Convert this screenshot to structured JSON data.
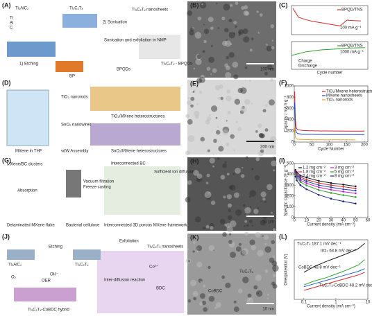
{
  "panel_a": {
    "label": "(A)",
    "texts": [
      "Ti₃AlC₂",
      "Ti",
      "Al",
      "C",
      "1) Etching",
      "Ti₃C₂Tₓ",
      "2) Sonication",
      "Ti₃C₂Tₓ nanosheets",
      "Sonication and exfoliation in NMP",
      "BPQDs",
      "BP",
      "Ti₃C₂Tₓ - BPQDs"
    ]
  },
  "panel_b": {
    "label": "(B)",
    "scale": "100 nm"
  },
  "panel_c": {
    "label": "(C)",
    "texts": [
      "100 mA g⁻¹",
      "1000 mA g⁻¹",
      "Charge",
      "Discharge"
    ],
    "charts": [
      {
        "type": "line",
        "xlim": [
          0,
          55
        ],
        "ylim": [
          0,
          1000
        ],
        "x": [
          1,
          5,
          10,
          15,
          20,
          25,
          30,
          35,
          40,
          45,
          50
        ],
        "series": [
          {
            "name": "BPQD/TNS",
            "color": "#d62728",
            "values": [
              900,
              600,
              520,
              460,
              420,
              380,
              340,
              300,
              500,
              480,
              470
            ]
          }
        ]
      },
      {
        "type": "line",
        "xlim": [
          0,
          2600
        ],
        "ylim": [
          0,
          600
        ],
        "xlabel": "Cycle number",
        "x": [
          0,
          500,
          1000,
          1500,
          2000,
          2500
        ],
        "series": [
          {
            "name": "BPQD/TNS",
            "color": "#2ca02c",
            "values": [
              300,
              380,
              420,
              440,
              460,
              470
            ]
          }
        ]
      }
    ]
  },
  "panel_d": {
    "label": "(D)",
    "texts": [
      "MXene in THF",
      "TiO₂ nanorods",
      "SnO₂ nanowires",
      "vdW Assembly",
      "TiO₂/MXene heterostructures",
      "SnO₂/MXene heterostructures"
    ]
  },
  "panel_e": {
    "label": "(E)",
    "scale": "200 nm"
  },
  "panel_f": {
    "label": "(F)",
    "chart": {
      "type": "line",
      "xlabel": "Cycle Number",
      "ylabel": "Capacity / mA h g⁻¹",
      "xlim": [
        0,
        210
      ],
      "ylim": [
        0,
        1000
      ],
      "xticks": [
        0,
        50,
        100,
        150,
        200
      ],
      "yticks": [
        0,
        200,
        400,
        600,
        800,
        1000
      ],
      "x": [
        1,
        3,
        5,
        10,
        25,
        50,
        75,
        100,
        125,
        150,
        175,
        200
      ],
      "series": [
        {
          "name": "TiO₂/Mxene heterostructures",
          "color": "#d62728",
          "values": [
            900,
            420,
            260,
            220,
            205,
            200,
            198,
            197,
            196,
            195,
            195,
            194
          ]
        },
        {
          "name": "MXene nanosheets",
          "color": "#1f3fbf",
          "values": [
            700,
            300,
            180,
            150,
            140,
            138,
            136,
            135,
            134,
            134,
            133,
            133
          ]
        },
        {
          "name": "TiO₂ nanorods",
          "color": "#f0a020",
          "values": [
            250,
            100,
            60,
            50,
            45,
            42,
            40,
            40,
            39,
            39,
            38,
            null
          ]
        }
      ]
    }
  },
  "panel_g": {
    "label": "(G)",
    "texts": [
      "MXene/BC clusters",
      "Absorption",
      "Vacuum filtration",
      "Freeze-casting",
      "Interconnected BC",
      "Sufficient ion diffusion",
      "Delaminated MXene flake",
      "Bacterial cellulose",
      "Interconnected 3D porous MXene framework"
    ]
  },
  "panel_h": {
    "label": "(H)",
    "scale": "50 μm"
  },
  "panel_i": {
    "label": "(I)",
    "chart": {
      "type": "line",
      "markers": true,
      "xlabel": "Current density (mA cm⁻²)",
      "ylabel": "Specific capacitance (F g⁻¹)",
      "xlim": [
        0,
        60
      ],
      "ylim": [
        0,
        500
      ],
      "xticks": [
        0,
        10,
        20,
        30,
        40,
        50,
        60
      ],
      "yticks": [
        0,
        100,
        200,
        300,
        400,
        500
      ],
      "x": [
        1,
        2,
        5,
        10,
        20,
        30,
        40,
        50
      ],
      "series": [
        {
          "name": "1.2 mg cm⁻²",
          "color": "#111111",
          "values": [
            440,
            420,
            390,
            370,
            340,
            320,
            305,
            290
          ]
        },
        {
          "name": "1.8 mg cm⁻²",
          "color": "#d62728",
          "values": [
            430,
            405,
            375,
            350,
            320,
            300,
            285,
            270
          ]
        },
        {
          "name": "2.4 mg cm⁻²",
          "color": "#1f3fbf",
          "values": [
            420,
            395,
            360,
            335,
            300,
            280,
            262,
            250
          ]
        },
        {
          "name": "3 mg cm⁻²",
          "color": "#c020c0",
          "values": [
            410,
            385,
            345,
            318,
            280,
            258,
            240,
            225
          ]
        },
        {
          "name": "5 mg cm⁻²",
          "color": "#2ca02c",
          "values": [
            400,
            370,
            330,
            298,
            255,
            228,
            208,
            190
          ]
        },
        {
          "name": "8 mg cm⁻²",
          "color": "#1a237e",
          "values": [
            380,
            345,
            300,
            262,
            210,
            175,
            150,
            130
          ]
        }
      ]
    }
  },
  "panel_j": {
    "label": "(J)",
    "texts": [
      "Ti₃AlC₂",
      "Etching",
      "Ti₃C₂Tₓ",
      "Exfoliation",
      "Ti₃C₂Tₓ nanosheets",
      "Co²⁺",
      "Inter-diffusion reaction",
      "BDC",
      "OER",
      "O₂",
      "OH⁻",
      "Ti₃C₂Tₓ-CoBDC hybrid"
    ]
  },
  "panel_k": {
    "label": "(K)",
    "texts": [
      "Ti₃C₂Tₓ",
      "CoBDC"
    ],
    "scale": "10 nm"
  },
  "panel_l": {
    "label": "(L)",
    "chart": {
      "type": "line",
      "xlog": true,
      "xlabel": "Current density (mA cm⁻²)",
      "ylabel": "Overpotential (V)",
      "xlim": [
        0.05,
        10
      ],
      "ylim": [
        0.25,
        0.58
      ],
      "xticks": [
        0.1,
        1,
        10
      ],
      "x": [
        0.1,
        0.2,
        0.5,
        1,
        2,
        5,
        8
      ],
      "series": [
        {
          "name": "Ti₃C₂Tₓ 187.1 mV dec⁻¹",
          "color": "#111111",
          "values": [
            0.4,
            0.43,
            0.46,
            0.48,
            0.5,
            0.53,
            0.56
          ]
        },
        {
          "name": "IrO₂ 63.8 mV dec⁻¹",
          "color": "#2ca02c",
          "values": [
            0.33,
            0.35,
            0.37,
            0.39,
            0.41,
            0.44,
            0.47
          ]
        },
        {
          "name": "CoBDC 48.8 mV dec⁻¹",
          "color": "#1f5fd0",
          "values": [
            0.32,
            0.335,
            0.355,
            0.37,
            0.385,
            0.405,
            0.42
          ]
        },
        {
          "name": "Ti₃C₂Tₓ-CoBDC 48.2 mV dec⁻¹",
          "color": "#d62728",
          "values": [
            0.3,
            0.315,
            0.335,
            0.35,
            0.365,
            0.385,
            0.4
          ]
        }
      ]
    }
  }
}
